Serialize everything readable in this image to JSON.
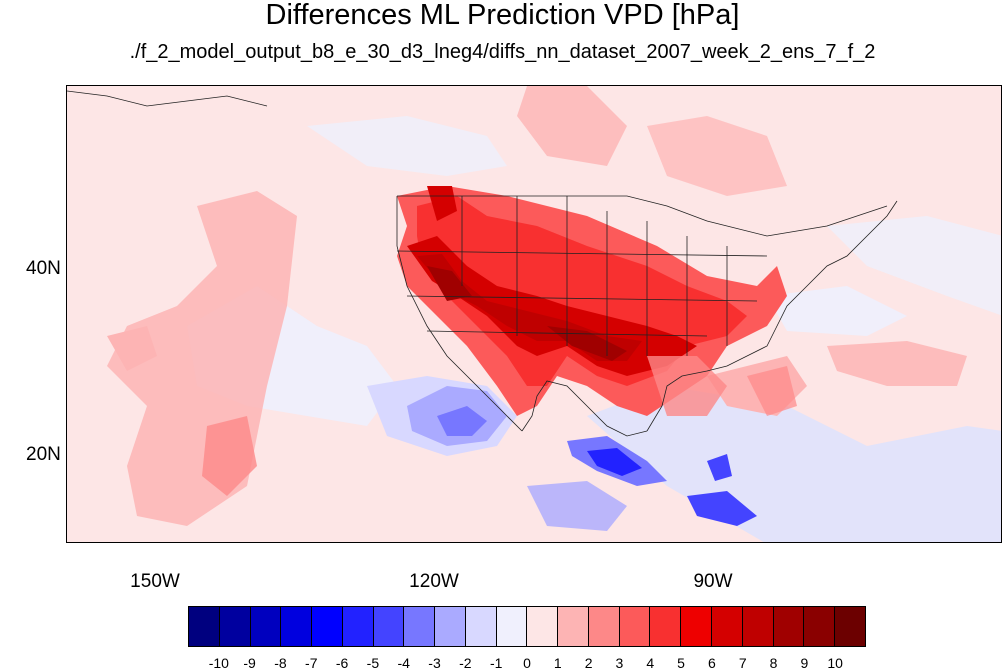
{
  "title": "Differences ML Prediction VPD [hPa]",
  "subtitle": "./f_2_model_output_b8_e_30_d3_lneg4/diffs_nn_dataset_2007_week_2_ens_7_f_2",
  "map": {
    "projection": "cylindrical equidistant",
    "lon_range": [
      -160,
      -60
    ],
    "lat_range": [
      10,
      59
    ],
    "region": "North America, eastern Pacific, Gulf of Mexico",
    "lat_labels": [
      "40N",
      "20N"
    ],
    "lon_labels": [
      "150W",
      "120W",
      "90W"
    ]
  },
  "colorbar": {
    "labels": [
      "-10",
      "-9",
      "-8",
      "-7",
      "-6",
      "-5",
      "-4",
      "-3",
      "-2",
      "-1",
      "0",
      "1",
      "2",
      "3",
      "4",
      "5",
      "6",
      "7",
      "8",
      "9",
      "10"
    ],
    "colors": [
      "#00007f",
      "#00009f",
      "#0000bf",
      "#0000df",
      "#0000ff",
      "#2222ff",
      "#4444ff",
      "#7777ff",
      "#aaaaff",
      "#d8d8ff",
      "#f0f0fd",
      "#fde6e6",
      "#fdb4b4",
      "#fd8888",
      "#fc5a5a",
      "#f83030",
      "#ee0000",
      "#d40000",
      "#bf0000",
      "#a00000",
      "#8a0000",
      "#6c0000"
    ]
  }
}
